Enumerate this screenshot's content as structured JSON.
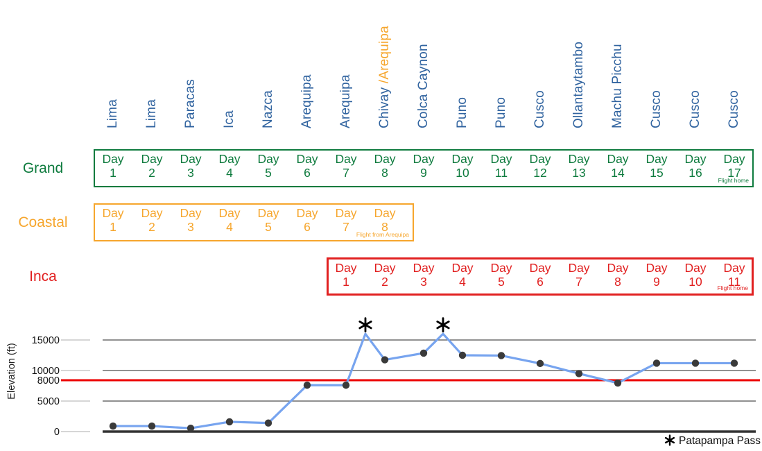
{
  "cities": [
    {
      "name": "Lima"
    },
    {
      "name": "Lima"
    },
    {
      "name": "Paracas"
    },
    {
      "name": "Ica"
    },
    {
      "name": "Nazca"
    },
    {
      "name": "Arequipa"
    },
    {
      "name": "Arequipa"
    },
    {
      "name": "Chivay ",
      "name_alt": "/Arequipa"
    },
    {
      "name": "Colca Caynon"
    },
    {
      "name": "Puno"
    },
    {
      "name": "Puno"
    },
    {
      "name": "Cusco"
    },
    {
      "name": "Ollantaytambo"
    },
    {
      "name": "Machu Picchu"
    },
    {
      "name": "Cusco"
    },
    {
      "name": "Cusco"
    },
    {
      "name": "Cusco"
    }
  ],
  "tours": [
    {
      "name": "Grand",
      "day_word": "Day",
      "start_col": 1,
      "num_days": 17,
      "final_note": "Flight home",
      "color": "#0e7b3e"
    },
    {
      "name": "Coastal",
      "day_word": "Day",
      "start_col": 1,
      "num_days": 8,
      "final_note": "Flight from Arequipa",
      "color": "#f6a62d"
    },
    {
      "name": "Inca",
      "day_word": "Day",
      "start_col": 7,
      "num_days": 11,
      "final_note": "Flight home",
      "color": "#e12020"
    }
  ],
  "chart_data": {
    "type": "line",
    "title": "",
    "xlabel": "",
    "ylabel": "Elevation (ft)",
    "ylim": [
      0,
      17000
    ],
    "grid": true,
    "yticks": [
      {
        "label": "15000",
        "value": 15000
      },
      {
        "label": "10000",
        "value": 10000
      },
      {
        "label": "8000",
        "value": 8000,
        "threshold": true
      },
      {
        "label": "5000",
        "value": 5000
      },
      {
        "label": "0",
        "value": 0
      }
    ],
    "threshold_ft": 8000,
    "points": [
      {
        "col": 1,
        "city": "Lima",
        "elevation_ft": 900
      },
      {
        "col": 2,
        "city": "Lima",
        "elevation_ft": 900
      },
      {
        "col": 3,
        "city": "Paracas",
        "elevation_ft": 550
      },
      {
        "col": 4,
        "city": "Ica",
        "elevation_ft": 1600
      },
      {
        "col": 5,
        "city": "Nazca",
        "elevation_ft": 1400
      },
      {
        "col": 6,
        "city": "Arequipa",
        "elevation_ft": 7600
      },
      {
        "col": 7,
        "city": "Arequipa",
        "elevation_ft": 7600
      },
      {
        "col": 7.5,
        "city": "Patapampa Pass",
        "elevation_ft": 16000,
        "marker": "asterisk"
      },
      {
        "col": 8,
        "city": "Chivay",
        "elevation_ft": 11750
      },
      {
        "col": 9,
        "city": "Colca Caynon",
        "elevation_ft": 12850
      },
      {
        "col": 9.5,
        "city": "Patapampa Pass",
        "elevation_ft": 16000,
        "marker": "asterisk"
      },
      {
        "col": 10,
        "city": "Puno",
        "elevation_ft": 12500
      },
      {
        "col": 11,
        "city": "Puno",
        "elevation_ft": 12450
      },
      {
        "col": 12,
        "city": "Cusco",
        "elevation_ft": 11150
      },
      {
        "col": 13,
        "city": "Ollantaytambo",
        "elevation_ft": 9500
      },
      {
        "col": 14,
        "city": "Machu Picchu",
        "elevation_ft": 7950
      },
      {
        "col": 15,
        "city": "Cusco",
        "elevation_ft": 11200
      },
      {
        "col": 16,
        "city": "Cusco",
        "elevation_ft": 11200
      },
      {
        "col": 17,
        "city": "Cusco",
        "elevation_ft": 11200
      }
    ],
    "legend": {
      "symbol": "asterisk",
      "label": "Patapampa Pass",
      "position": "bottom-right"
    }
  },
  "colors": {
    "city_blue": "#30639f",
    "city_alt_orange": "#f6a62d",
    "grand_green": "#0e7b3e",
    "coastal_orange": "#f6a62d",
    "inca_red": "#e12020",
    "line_blue": "#77a4ef",
    "marker_dark": "#3a3a3a",
    "threshold_red": "#ec0000",
    "grid_dark": "#4f4f4f",
    "axis_dark": "#333333",
    "tick_light": "#c9c9c9",
    "text_dark": "#111111"
  }
}
